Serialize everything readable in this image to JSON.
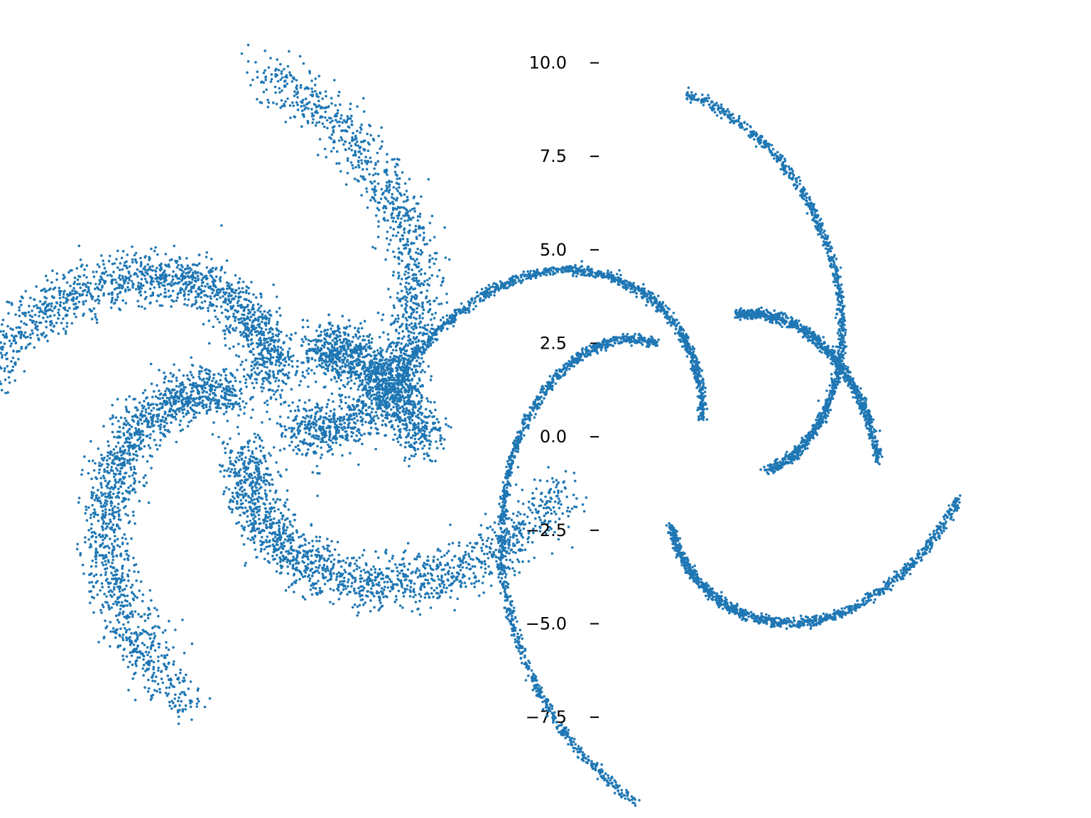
{
  "chart_data": [
    {
      "type": "scatter",
      "color": "#1f77b4",
      "axes_visible": false,
      "grid": false,
      "xlim": [
        -7.2,
        6.9
      ],
      "ylim": [
        -10.6,
        11.2
      ],
      "arms": [
        {
          "theta0": 2.53,
          "theta1": 4.45,
          "r0": 1.1,
          "r1": 9.2,
          "spread": 0.42,
          "points": 1600
        },
        {
          "theta0": 4.28,
          "theta1": 6.05,
          "r0": 1.2,
          "r1": 9.9,
          "spread": 0.42,
          "points": 1600
        },
        {
          "theta0": 5.87,
          "theta1": 7.86,
          "r0": 1.1,
          "r1": 10.6,
          "spread": 0.42,
          "points": 1600
        },
        {
          "theta0": 1.32,
          "theta1": 3.1,
          "r0": 1.1,
          "r1": 9.7,
          "spread": 0.42,
          "points": 1600
        },
        {
          "theta0": 0.92,
          "theta1": -0.18,
          "r0": 2.6,
          "r1": 5.2,
          "spread": 0.42,
          "points": 1200
        }
      ]
    },
    {
      "type": "scatter",
      "color": "#1f77b4",
      "grid": false,
      "xlim": [
        -2.9,
        11.6
      ],
      "ylim": [
        -8.6,
        10.2
      ],
      "yticks": [
        10.0,
        7.5,
        5.0,
        2.5,
        0.0,
        -2.5,
        -5.0,
        -7.5
      ],
      "yticklabels": [
        "10.0",
        "7.5",
        "5.0",
        "2.5",
        "0.0",
        "−2.5",
        "−5.0",
        "−7.5"
      ],
      "arms": [
        {
          "theta0": 2.1,
          "theta1": 4.5,
          "r0": 2.9,
          "r1": 10.0,
          "spread": 0.07,
          "points": 1100
        },
        {
          "theta0": 4.35,
          "theta1": 6.1,
          "r0": 2.6,
          "r1": 8.8,
          "spread": 0.07,
          "points": 1100
        },
        {
          "theta0": 5.9,
          "theta1": 7.9,
          "r0": 2.4,
          "r1": 9.2,
          "spread": 0.07,
          "points": 1100
        },
        {
          "theta0": 1.4,
          "theta1": 3.0,
          "r0": 0.5,
          "r1": 10.2,
          "spread": 0.07,
          "points": 1100
        },
        {
          "theta0": 1.2,
          "theta1": -0.1,
          "r0": 3.5,
          "r1": 6.0,
          "spread": 0.07,
          "points": 900
        }
      ]
    }
  ]
}
